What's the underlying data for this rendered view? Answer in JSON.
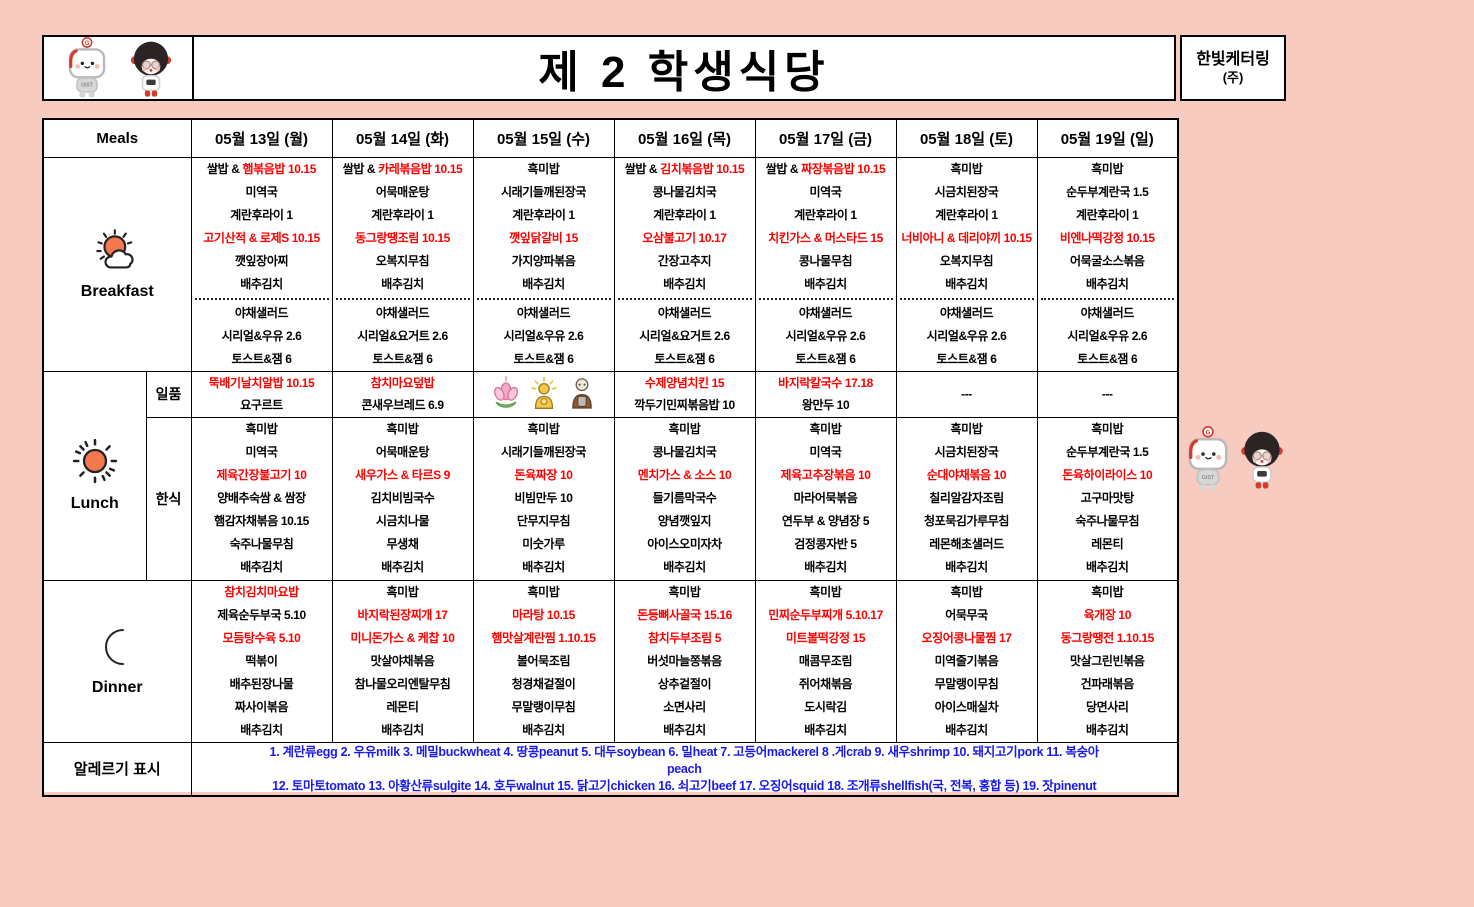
{
  "header": {
    "title": "제 2 학생식당",
    "vendor": "한빛케터링",
    "vendor_sub": "(주)"
  },
  "table": {
    "meals_label": "Meals",
    "days": [
      "05월 13일 (월)",
      "05월 14일 (화)",
      "05월 15일 (수)",
      "05월 16일 (목)",
      "05월 17일 (금)",
      "05월 18일 (토)",
      "05월 19일 (일)"
    ],
    "breakfast_label": "Breakfast",
    "lunch_label": "Lunch",
    "dinner_label": "Dinner",
    "ilpum_label": "일품",
    "hansik_label": "한식",
    "allergy_label": "알레르기 표시"
  },
  "colors": {
    "background": "#f8cbc0",
    "highlight_red": "#ff0000",
    "allergy_blue": "#1a1aee"
  },
  "menu": {
    "breakfast": [
      {
        "main": [
          [
            [
              "쌀밥 & ",
              0
            ],
            [
              "햄볶음밥 10.15",
              1
            ]
          ],
          "미역국",
          "계란후라이 1",
          [
            [
              "고기산적 & 로제S 10.15",
              1
            ]
          ],
          "깻잎장아찌",
          "배추김치"
        ],
        "extra": [
          "야채샐러드",
          "시리얼&우유 2.6",
          "토스트&잼 6"
        ]
      },
      {
        "main": [
          [
            [
              "쌀밥 & ",
              0
            ],
            [
              "카레볶음밥 10.15",
              1
            ]
          ],
          "어묵매운탕",
          "계란후라이 1",
          [
            [
              "동그랑땡조림 10.15",
              1
            ]
          ],
          "오복지무침",
          "배추김치"
        ],
        "extra": [
          "야채샐러드",
          "시리얼&요거트 2.6",
          "토스트&잼 6"
        ]
      },
      {
        "main": [
          "흑미밥",
          "시래기들깨된장국",
          "계란후라이 1",
          [
            [
              "깻잎닭갈비 15",
              1
            ]
          ],
          "가지양파볶음",
          "배추김치"
        ],
        "extra": [
          "야채샐러드",
          "시리얼&우유 2.6",
          "토스트&잼 6"
        ]
      },
      {
        "main": [
          [
            [
              "쌀밥 & ",
              0
            ],
            [
              "김치볶음밥 10.15",
              1
            ]
          ],
          "콩나물김치국",
          "계란후라이 1",
          [
            [
              "오삼불고기 10.17",
              1
            ]
          ],
          "간장고추지",
          "배추김치"
        ],
        "extra": [
          "야채샐러드",
          "시리얼&요거트 2.6",
          "토스트&잼 6"
        ]
      },
      {
        "main": [
          [
            [
              "쌀밥 & ",
              0
            ],
            [
              "짜장볶음밥 10.15",
              1
            ]
          ],
          "미역국",
          "계란후라이 1",
          [
            [
              "치킨가스 & 머스타드 15",
              1
            ]
          ],
          "콩나물무침",
          "배추김치"
        ],
        "extra": [
          "야채샐러드",
          "시리얼&우유 2.6",
          "토스트&잼 6"
        ]
      },
      {
        "main": [
          "흑미밥",
          "시금치된장국",
          "계란후라이 1",
          [
            [
              "너비아니 & 데리야끼 10.15",
              1
            ]
          ],
          "오복지무침",
          "배추김치"
        ],
        "extra": [
          "야채샐러드",
          "시리얼&우유 2.6",
          "토스트&잼 6"
        ]
      },
      {
        "main": [
          "흑미밥",
          "순두부계란국 1.5",
          "계란후라이 1",
          [
            [
              "비엔나떡강정 10.15",
              1
            ]
          ],
          "어묵굴소스볶음",
          "배추김치"
        ],
        "extra": [
          "야채샐러드",
          "시리얼&우유 2.6",
          "토스트&잼 6"
        ]
      }
    ],
    "lunch_ilpum": [
      {
        "lines": [
          [
            [
              "뚝배기날치알밥 10.15",
              1
            ]
          ],
          "요구르트"
        ]
      },
      {
        "lines": [
          [
            [
              "참치마요덮밥",
              1
            ]
          ],
          "콘새우브레드 6.9"
        ]
      },
      {
        "icons": [
          "lotus-icon",
          "buddha-icon",
          "monk-icon"
        ]
      },
      {
        "lines": [
          [
            [
              "수제양념치킨 15",
              1
            ]
          ],
          "깍두기민찌볶음밥 10"
        ]
      },
      {
        "lines": [
          [
            [
              "바지락칼국수 17.18",
              1
            ]
          ],
          "왕만두 10"
        ]
      },
      {
        "lines": [
          "---"
        ]
      },
      {
        "lines": [
          "---"
        ]
      }
    ],
    "lunch_hansik": [
      [
        "흑미밥",
        "미역국",
        [
          [
            "제육간장불고기 10",
            1
          ]
        ],
        "양배추숙쌈 & 쌈장",
        "햄감자채볶음 10.15",
        "숙주나물무침",
        "배추김치"
      ],
      [
        "흑미밥",
        "어묵매운탕",
        [
          [
            "새우가스 & 타르S 9",
            1
          ]
        ],
        "김치비빔국수",
        "시금치나물",
        "무생채",
        "배추김치"
      ],
      [
        "흑미밥",
        "시래기들깨된장국",
        [
          [
            "돈육짜장 10",
            1
          ]
        ],
        "비빔만두 10",
        "단무지무침",
        "미숫가루",
        "배추김치"
      ],
      [
        "흑미밥",
        "콩나물김치국",
        [
          [
            "멘치가스 & 소스 10",
            1
          ]
        ],
        "들기름막국수",
        "양념깻잎지",
        "아이스오미자차",
        "배추김치"
      ],
      [
        "흑미밥",
        "미역국",
        [
          [
            "제육고추장볶음 10",
            1
          ]
        ],
        "마라어묵볶음",
        "연두부 & 양념장 5",
        "검정콩자반 5",
        "배추김치"
      ],
      [
        "흑미밥",
        "시금치된장국",
        [
          [
            "순대야채볶음 10",
            1
          ]
        ],
        "칠리알감자조림",
        "청포묵김가루무침",
        "레몬해초샐러드",
        "배추김치"
      ],
      [
        "흑미밥",
        "순두부계란국 1.5",
        [
          [
            "돈육하이라이스 10",
            1
          ]
        ],
        "고구마맛탕",
        "숙주나물무침",
        "레몬티",
        "배추김치"
      ]
    ],
    "dinner": [
      [
        [
          [
            "참치김치마요밥",
            1
          ]
        ],
        "제육순두부국 5.10",
        [
          [
            "모듬탕수육 5.10",
            1
          ]
        ],
        "떡볶이",
        "배추된장나물",
        "짜사이볶음",
        "배추김치"
      ],
      [
        "흑미밥",
        [
          [
            "바지락된장찌개 17",
            1
          ]
        ],
        [
          [
            "미니돈가스 & 케찹 10",
            1
          ]
        ],
        "맛살야채볶음",
        "참나물오리엔탈무침",
        "레몬티",
        "배추김치"
      ],
      [
        "흑미밥",
        [
          [
            "마라탕 10.15",
            1
          ]
        ],
        [
          [
            "햄맛살계란찜 1.10.15",
            1
          ]
        ],
        "볼어묵조림",
        "청경채겉절이",
        "무말랭이무침",
        "배추김치"
      ],
      [
        "흑미밥",
        [
          [
            "돈등뼈사골국 15.16",
            1
          ]
        ],
        [
          [
            "참치두부조림 5",
            1
          ]
        ],
        "버섯마늘쫑볶음",
        "상추겉절이",
        "소면사리",
        "배추김치"
      ],
      [
        "흑미밥",
        [
          [
            "민찌순두부찌개 5.10.17",
            1
          ]
        ],
        [
          [
            "미트볼떡강정 15",
            1
          ]
        ],
        "매콤무조림",
        "쥐어채볶음",
        "도시락김",
        "배추김치"
      ],
      [
        "흑미밥",
        "어묵무국",
        [
          [
            "오징어콩나물찜 17",
            1
          ]
        ],
        "미역줄기볶음",
        "무말랭이무침",
        "아이스매실차",
        "배추김치"
      ],
      [
        "흑미밥",
        [
          [
            "육개장 10",
            1
          ]
        ],
        [
          [
            "동그랑땡전 1.10.15",
            1
          ]
        ],
        "맛살그린빈볶음",
        "건파래볶음",
        "당면사리",
        "배추김치"
      ]
    ]
  },
  "allergy": {
    "lines": [
      "1. 계란류egg 2. 우유milk 3. 메밀buckwheat 4. 땅콩peanut 5. 대두soybean 6. 밀heat 7. 고등어mackerel 8 .게crab 9. 새우shrimp 10. 돼지고기pork 11. 복숭아",
      "peach",
      "12. 토마토tomato 13. 아황산류sulgite 14. 호두walnut 15. 닭고기chicken 16. 쇠고기beef 17. 오징어squid 18. 조개류shellfish(국, 전복, 홍합 등) 19. 잣pinenut"
    ]
  }
}
